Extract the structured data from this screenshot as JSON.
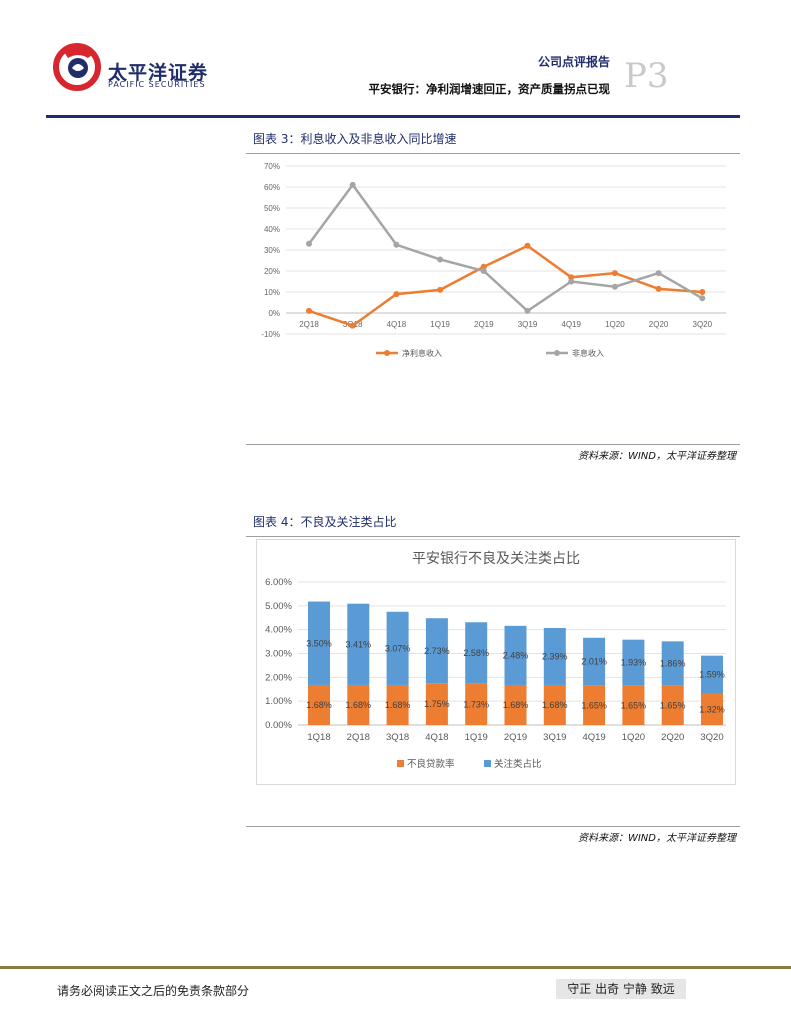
{
  "header": {
    "brand_cn": "太平洋证券",
    "brand_en": "PACIFIC SECURITIES",
    "report_type": "公司点评报告",
    "report_title": "平安银行：净利润增速回正，资产质量拐点已现",
    "page_number": "P3",
    "accent_color": "#1f2d6b",
    "logo_color": "#d7262e"
  },
  "figures": [
    {
      "title": "图表 3：利息收入及非息收入同比增速",
      "source": "资料来源：WIND，太平洋证券整理"
    },
    {
      "title": "图表 4：不良及关注类占比",
      "source": "资料来源：WIND，太平洋证券整理"
    }
  ],
  "chart_data": [
    {
      "type": "line",
      "title": "",
      "categories": [
        "2Q18",
        "3Q18",
        "4Q18",
        "1Q19",
        "2Q19",
        "3Q19",
        "4Q19",
        "1Q20",
        "2Q20",
        "3Q20"
      ],
      "y_ticks": [
        "70%",
        "60%",
        "50%",
        "40%",
        "30%",
        "20%",
        "10%",
        "0%",
        "-10%"
      ],
      "ylim": [
        -10,
        70
      ],
      "grid": true,
      "legend_position": "bottom",
      "series": [
        {
          "name": "净利息收入",
          "color": "#ed7d31",
          "values": [
            1,
            -6,
            9,
            11,
            22,
            32,
            17,
            19,
            11.5,
            10
          ]
        },
        {
          "name": "非息收入",
          "color": "#a5a5a5",
          "values": [
            33,
            61,
            32.5,
            25.5,
            20,
            1,
            15,
            12.5,
            19,
            7
          ]
        }
      ]
    },
    {
      "type": "bar",
      "stacked": true,
      "title": "平安银行不良及关注类占比",
      "categories": [
        "1Q18",
        "2Q18",
        "3Q18",
        "4Q18",
        "1Q19",
        "2Q19",
        "3Q19",
        "4Q19",
        "1Q20",
        "2Q20",
        "3Q20"
      ],
      "y_ticks": [
        "6.00%",
        "5.00%",
        "4.00%",
        "3.00%",
        "2.00%",
        "1.00%",
        "0.00%"
      ],
      "ylim": [
        0,
        6
      ],
      "grid": true,
      "legend_position": "bottom",
      "series": [
        {
          "name": "不良贷款率",
          "color": "#ed7d31",
          "values": [
            1.68,
            1.68,
            1.68,
            1.75,
            1.73,
            1.68,
            1.68,
            1.65,
            1.65,
            1.65,
            1.32
          ],
          "labels": [
            "1.68%",
            "1.68%",
            "1.68%",
            "1.75%",
            "1.73%",
            "1.68%",
            "1.68%",
            "1.65%",
            "1.65%",
            "1.65%",
            "1.32%"
          ]
        },
        {
          "name": "关注类占比",
          "color": "#5b9bd5",
          "values": [
            3.5,
            3.41,
            3.07,
            2.73,
            2.58,
            2.48,
            2.39,
            2.01,
            1.93,
            1.86,
            1.59
          ],
          "labels": [
            "3.50%",
            "3.41%",
            "3.07%",
            "2.73%",
            "2.58%",
            "2.48%",
            "2.39%",
            "2.01%",
            "1.93%",
            "1.86%",
            "1.59%"
          ]
        }
      ]
    }
  ],
  "footer": {
    "disclaimer": "请务必阅读正文之后的免责条款部分",
    "motto": "守正 出奇 宁静 致远"
  }
}
